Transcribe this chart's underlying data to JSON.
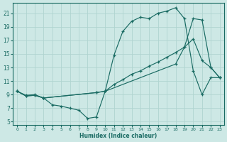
{
  "xlabel": "Humidex (Indice chaleur)",
  "background_color": "#cde8e5",
  "grid_color": "#b0d4d0",
  "line_color": "#1a6b63",
  "xlim": [
    -0.5,
    23.5
  ],
  "ylim": [
    4.5,
    22.5
  ],
  "xticks": [
    0,
    1,
    2,
    3,
    4,
    5,
    6,
    7,
    8,
    9,
    10,
    11,
    12,
    13,
    14,
    15,
    16,
    17,
    18,
    19,
    20,
    21,
    22,
    23
  ],
  "yticks": [
    5,
    7,
    9,
    11,
    13,
    15,
    17,
    19,
    21
  ],
  "line1_x": [
    0,
    1,
    2,
    3,
    4,
    5,
    6,
    7,
    8,
    9,
    10,
    11,
    12,
    13,
    14,
    15,
    16,
    17,
    18,
    19,
    20,
    21,
    22,
    23
  ],
  "line1_y": [
    9.5,
    8.9,
    9.0,
    8.5,
    7.5,
    7.3,
    7.0,
    6.7,
    5.5,
    5.7,
    9.5,
    14.8,
    18.3,
    19.8,
    20.4,
    20.2,
    21.0,
    21.3,
    21.8,
    20.2,
    12.5,
    9.0,
    11.5,
    11.5
  ],
  "line2_x": [
    0,
    1,
    2,
    3,
    9,
    10,
    11,
    12,
    13,
    14,
    15,
    16,
    17,
    18,
    19,
    20,
    21,
    22,
    23
  ],
  "line2_y": [
    9.5,
    8.8,
    8.9,
    8.5,
    9.3,
    9.5,
    10.5,
    11.2,
    12.0,
    12.5,
    13.2,
    13.8,
    14.5,
    15.2,
    16.0,
    17.2,
    14.0,
    13.0,
    11.5
  ],
  "line3_x": [
    0,
    1,
    2,
    3,
    9,
    10,
    18,
    19,
    20,
    21,
    22,
    23
  ],
  "line3_y": [
    9.5,
    8.8,
    8.9,
    8.5,
    9.3,
    9.5,
    13.5,
    16.0,
    20.2,
    20.0,
    13.0,
    11.5
  ]
}
